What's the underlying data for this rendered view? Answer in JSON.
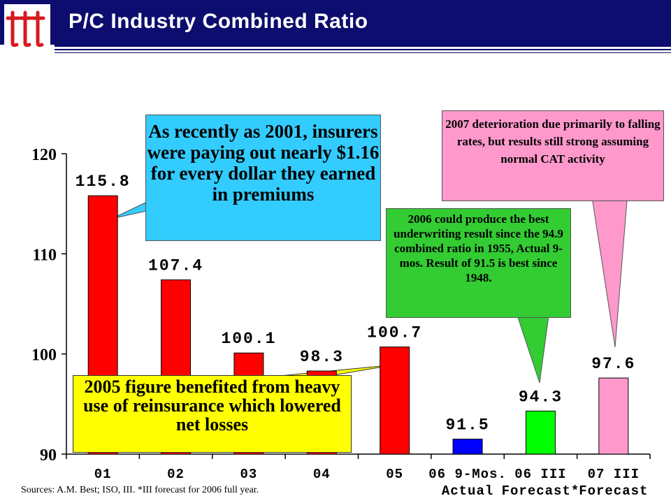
{
  "header": {
    "title": "P/C Industry Combined Ratio"
  },
  "colors": {
    "header_bg": "#0c0d6e",
    "logo_red": "#d71920",
    "actual": "#ff0000",
    "ninemos": "#0000ff",
    "forecast06": "#00ff00",
    "forecast07": "#ff99cc"
  },
  "chart_data": {
    "type": "bar",
    "categories": [
      [
        "01"
      ],
      [
        "02"
      ],
      [
        "03"
      ],
      [
        "04"
      ],
      [
        "05"
      ],
      [
        "06 9-Mos.",
        "Actual"
      ],
      [
        "06 III",
        "Forecast*"
      ],
      [
        "07 III",
        "Forecast"
      ]
    ],
    "values": [
      115.8,
      107.4,
      100.1,
      98.3,
      100.7,
      91.5,
      94.3,
      97.6
    ],
    "data_labels": [
      "115.8",
      "107.4",
      "100.1",
      "98.3",
      "100.7",
      "91.5",
      "94.3",
      "97.6"
    ],
    "colors": [
      "#ff0000",
      "#ff0000",
      "#ff0000",
      "#ff0000",
      "#ff0000",
      "#0000ff",
      "#00ff00",
      "#ff99cc"
    ],
    "ylim": [
      90,
      120
    ],
    "yticks": [
      90,
      100,
      110,
      120
    ],
    "xlabel": "",
    "ylabel": "",
    "grid": false
  },
  "callouts": {
    "cyan": "As recently as 2001, insurers were paying out nearly $1.16 for every dollar they earned in premiums",
    "green": "2006 could produce the best underwriting result since the 94.9 combined ratio in 1955, Actual 9-mos. Result of 91.5 is best since 1948.",
    "pink": "2007 deterioration due primarily to falling rates, but results still strong assuming normal  CAT activity",
    "yellow": "2005 figure benefited from heavy use of reinsurance which lowered net losses"
  },
  "footer": {
    "source": "Sources: A.M. Best; ISO, III.  *III forecast for 2006 full year."
  }
}
